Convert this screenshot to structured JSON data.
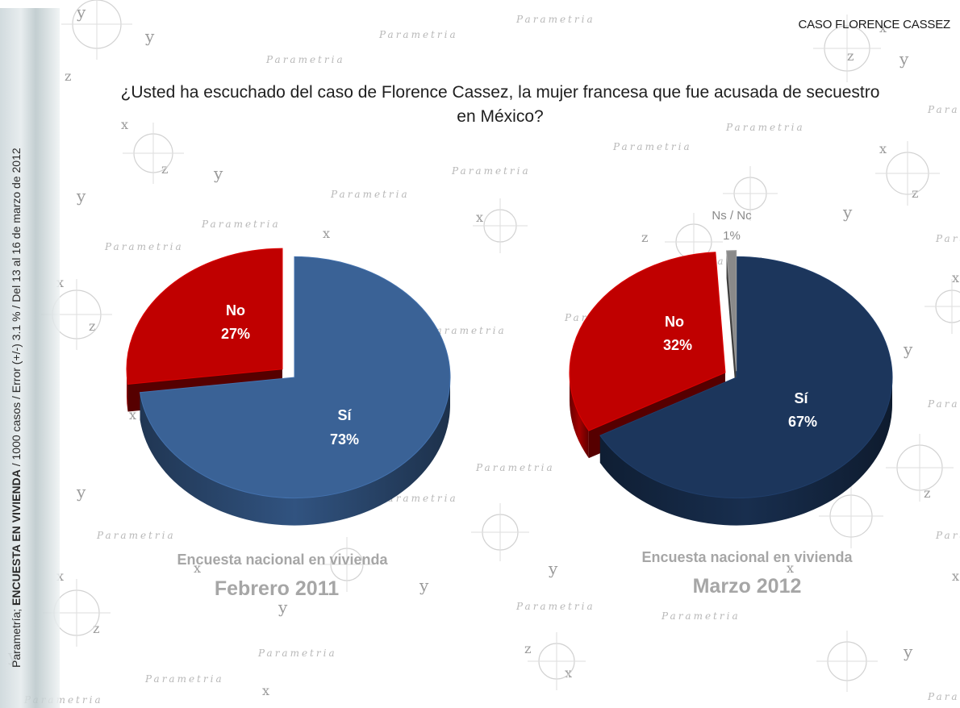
{
  "header": {
    "label": "CASO FLORENCE CASSEZ"
  },
  "sidebar": {
    "prefix": "Parametría; ",
    "strong": "ENCUESTA EN VIVIENDA",
    "suffix": " / 1000 casos / Error (+/-) 3.1 % / Del 13 al 16 de marzo de 2012"
  },
  "question": "¿Usted ha escuchado del caso de Florence Cassez, la mujer francesa que fue acusada de secuestro en México?",
  "watermark": {
    "text": "Parametria",
    "x_letter": "x",
    "y_letter": "y",
    "z_letter": "z"
  },
  "colors": {
    "si_2011": "#3a6296",
    "si_2012": "#1c365c",
    "no": "#c00000",
    "nsnc": "#8a8a8a",
    "caption": "#a6a6a6"
  },
  "chart_data": [
    {
      "type": "pie",
      "subtitle": "Encuesta nacional en vivienda",
      "title": "Febrero 2011",
      "slices": [
        {
          "label": "Sí",
          "value": 73,
          "text": "73%",
          "color": "#3a6296"
        },
        {
          "label": "No",
          "value": 27,
          "text": "27%",
          "color": "#c00000"
        }
      ]
    },
    {
      "type": "pie",
      "subtitle": "Encuesta nacional en vivienda",
      "title": "Marzo 2012",
      "slices": [
        {
          "label": "Sí",
          "value": 67,
          "text": "67%",
          "color": "#1c365c"
        },
        {
          "label": "No",
          "value": 32,
          "text": "32%",
          "color": "#c00000"
        },
        {
          "label": "Ns / Nc",
          "value": 1,
          "text": "1%",
          "color": "#8a8a8a"
        }
      ]
    }
  ]
}
